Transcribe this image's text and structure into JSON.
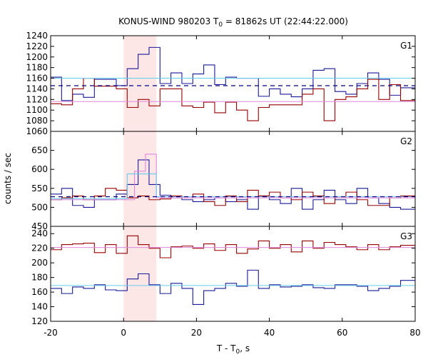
{
  "chart_data": {
    "type": "line",
    "title": "KONUS-WIND 980203 T",
    "title_sub": "0",
    "title_rest": " = 81862s UT (22:44:22.000)",
    "xlabel": "T - T",
    "xlabel_sub": "0",
    "xlabel_rest": ", s",
    "ylabel": "counts / sec",
    "xlim": [
      -20,
      80
    ],
    "x_ticks": [
      -20,
      0,
      20,
      40,
      60,
      80
    ],
    "highlight": {
      "x0": 0,
      "x1": 9,
      "color": "#fde6e6"
    },
    "colors": {
      "red": "#990000",
      "blue": "#1a1a99",
      "cyan": "#66ccee",
      "pink": "#e088dd",
      "navy": "#000088"
    },
    "panels": [
      {
        "name": "G1",
        "ylim": [
          1060,
          1240
        ],
        "y_ticks": [
          1060,
          1080,
          1100,
          1120,
          1140,
          1160,
          1180,
          1200,
          1220,
          1240
        ],
        "series": [
          {
            "color": "blue",
            "edges": [
              -20,
              -17,
              -14,
              -11,
              -8,
              -5,
              -2,
              1,
              4,
              7,
              10,
              13,
              16,
              19,
              22,
              25,
              28,
              31,
              34,
              37,
              40,
              43,
              46,
              49,
              52,
              55,
              58,
              61,
              64,
              67,
              70,
              73,
              76,
              79
            ],
            "values": [
              1162,
              1118,
              1130,
              1124,
              1158,
              1158,
              1146,
              1178,
              1205,
              1218,
              1150,
              1170,
              1150,
              1168,
              1185,
              1148,
              1162,
              1160,
              1160,
              1126,
              1140,
              1130,
              1125,
              1140,
              1175,
              1178,
              1135,
              1130,
              1150,
              1170,
              1158,
              1128,
              1142
            ]
          },
          {
            "color": "red",
            "edges": [
              -20,
              -17,
              -14,
              -11,
              -8,
              -5,
              -2,
              1,
              4,
              7,
              10,
              13,
              16,
              19,
              22,
              25,
              28,
              31,
              34,
              37,
              40,
              43,
              46,
              49,
              52,
              55,
              58,
              61,
              64,
              67,
              70,
              73,
              76,
              79
            ],
            "values": [
              1112,
              1110,
              1140,
              1160,
              1145,
              1145,
              1140,
              1105,
              1120,
              1108,
              1140,
              1140,
              1108,
              1105,
              1115,
              1095,
              1115,
              1100,
              1080,
              1105,
              1110,
              1110,
              1110,
              1130,
              1140,
              1080,
              1120,
              1125,
              1140,
              1158,
              1120,
              1148,
              1118
            ]
          },
          {
            "color": "cyan",
            "constant": 1160
          },
          {
            "color": "pink",
            "constant": 1116
          },
          {
            "color": "navy",
            "constant": 1146,
            "dashed": true
          }
        ]
      },
      {
        "name": "G2",
        "ylim": [
          450,
          700
        ],
        "y_ticks": [
          450,
          500,
          550,
          600,
          650
        ],
        "series": [
          {
            "color": "blue",
            "edges": [
              -20,
              -17,
              -14,
              -11,
              -8,
              -5,
              -2,
              1,
              4,
              7,
              10,
              13,
              16,
              19,
              22,
              25,
              28,
              31,
              34,
              37,
              40,
              43,
              46,
              49,
              52,
              55,
              58,
              61,
              64,
              67,
              70,
              73,
              76,
              79
            ],
            "values": [
              535,
              550,
              505,
              500,
              520,
              520,
              535,
              560,
              625,
              560,
              532,
              525,
              520,
              515,
              520,
              525,
              515,
              520,
              495,
              530,
              520,
              510,
              550,
              495,
              520,
              545,
              520,
              510,
              550,
              525,
              510,
              500,
              495
            ]
          },
          {
            "color": "red",
            "edges": [
              -20,
              -17,
              -14,
              -11,
              -8,
              -5,
              -2,
              1,
              4,
              7,
              10,
              13,
              16,
              19,
              22,
              25,
              28,
              31,
              34,
              37,
              40,
              43,
              46,
              49,
              52,
              55,
              58,
              61,
              64,
              67,
              70,
              73,
              76,
              79
            ],
            "values": [
              520,
              525,
              530,
              520,
              530,
              550,
              545,
              525,
              530,
              520,
              522,
              530,
              525,
              535,
              515,
              505,
              530,
              515,
              545,
              530,
              540,
              525,
              520,
              540,
              530,
              510,
              525,
              540,
              520,
              505,
              505,
              525,
              530
            ]
          },
          {
            "color": "pink",
            "edges": [
              -20,
              0,
              3,
              6,
              9,
              80
            ],
            "values": [
              520,
              520,
              595,
              640,
              525,
              525
            ]
          },
          {
            "color": "cyan",
            "edges": [
              -20,
              1,
              6,
              9,
              80
            ],
            "values": [
              523,
              588,
              588,
              528,
              528
            ]
          },
          {
            "color": "navy",
            "constant": 528,
            "dashed": true
          }
        ]
      },
      {
        "name": "G3",
        "ylim": [
          120,
          250
        ],
        "y_ticks": [
          120,
          140,
          160,
          180,
          200,
          220,
          240
        ],
        "series": [
          {
            "color": "red",
            "edges": [
              -20,
              -17,
              -14,
              -11,
              -8,
              -5,
              -2,
              1,
              4,
              7,
              10,
              13,
              16,
              19,
              22,
              25,
              28,
              31,
              34,
              37,
              40,
              43,
              46,
              49,
              52,
              55,
              58,
              61,
              64,
              67,
              70,
              73,
              76,
              79
            ],
            "values": [
              218,
              225,
              226,
              227,
              214,
              225,
              213,
              237,
              225,
              220,
              207,
              222,
              223,
              220,
              226,
              217,
              225,
              213,
              219,
              230,
              220,
              225,
              215,
              230,
              220,
              228,
              225,
              222,
              218,
              225,
              218,
              222,
              224
            ]
          },
          {
            "color": "blue",
            "edges": [
              -20,
              -17,
              -14,
              -11,
              -8,
              -5,
              -2,
              1,
              4,
              7,
              10,
              13,
              16,
              19,
              22,
              25,
              28,
              31,
              34,
              37,
              40,
              43,
              46,
              49,
              52,
              55,
              58,
              61,
              64,
              67,
              70,
              73,
              76,
              79
            ],
            "values": [
              165,
              158,
              167,
              165,
              170,
              163,
              162,
              178,
              185,
              170,
              158,
              172,
              165,
              143,
              162,
              165,
              172,
              168,
              190,
              165,
              170,
              167,
              168,
              170,
              166,
              165,
              170,
              170,
              168,
              162,
              165,
              168,
              176
            ]
          },
          {
            "color": "pink",
            "constant": 221
          },
          {
            "color": "cyan",
            "constant": 169
          }
        ]
      }
    ]
  }
}
